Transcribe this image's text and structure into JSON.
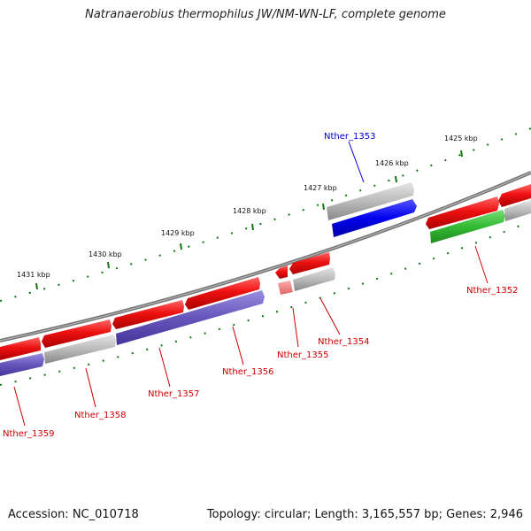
{
  "title": "Natranaerobius thermophilus JW/NM-WN-LF, complete genome",
  "accession": "Accession: NC_010718",
  "summary": "Topology: circular; Length: 3,165,557 bp; Genes: 2,946",
  "ticks": [
    {
      "label": "1425 kbp"
    },
    {
      "label": "1426 kbp"
    },
    {
      "label": "1427 kbp"
    },
    {
      "label": "1428 kbp"
    },
    {
      "label": "1429 kbp"
    },
    {
      "label": "1430 kbp"
    },
    {
      "label": "1431 kbp"
    }
  ],
  "genes": [
    {
      "name": "Nther_1352",
      "color": "#cc0000"
    },
    {
      "name": "Nther_1353",
      "color": "#0000cc"
    },
    {
      "name": "Nther_1354",
      "color": "#cc0000"
    },
    {
      "name": "Nther_1355",
      "color": "#cc0000"
    },
    {
      "name": "Nther_1356",
      "color": "#cc0000"
    },
    {
      "name": "Nther_1357",
      "color": "#cc0000"
    },
    {
      "name": "Nther_1358",
      "color": "#cc0000"
    },
    {
      "name": "Nther_1359",
      "color": "#cc0000"
    }
  ],
  "colors": {
    "forward_cds": "#ee1111",
    "reverse_cds": "#0000ff",
    "rna": "#6655bb",
    "gene_grey": "#aaaaaa",
    "green_feature": "#33bb33",
    "backbone": "#777777",
    "tick": "#117711"
  }
}
